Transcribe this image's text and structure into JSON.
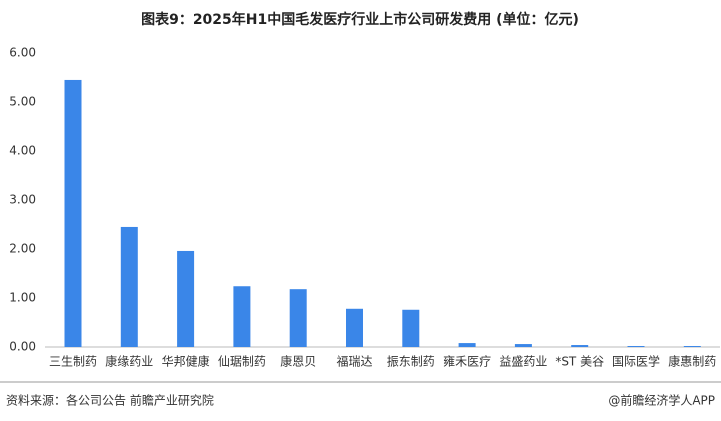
{
  "chart_data": {
    "type": "bar",
    "title": "图表9：2025年H1中国毛发医疗行业上市公司研发费用 (单位：亿元)",
    "categories": [
      "三生制药",
      "康缘药业",
      "华邦健康",
      "仙琚制药",
      "康恩贝",
      "福瑞达",
      "振东制药",
      "雍禾医疗",
      "益盛药业",
      "*ST 美谷",
      "国际医学",
      "康惠制药"
    ],
    "values": [
      5.45,
      2.45,
      1.96,
      1.24,
      1.18,
      0.78,
      0.76,
      0.08,
      0.06,
      0.04,
      0.02,
      0.02
    ],
    "color": "#3a86e8",
    "ylim": [
      0,
      6
    ],
    "yticks": [
      {
        "value": 0,
        "label": "0.00"
      },
      {
        "value": 1,
        "label": "1.00"
      },
      {
        "value": 2,
        "label": "2.00"
      },
      {
        "value": 3,
        "label": "3.00"
      },
      {
        "value": 4,
        "label": "4.00"
      },
      {
        "value": 5,
        "label": "5.00"
      },
      {
        "value": 6,
        "label": "6.00"
      }
    ],
    "grid": false,
    "source": "资料来源：各公司公告 前瞻产业研究院",
    "credit": "@前瞻经济学人APP"
  }
}
